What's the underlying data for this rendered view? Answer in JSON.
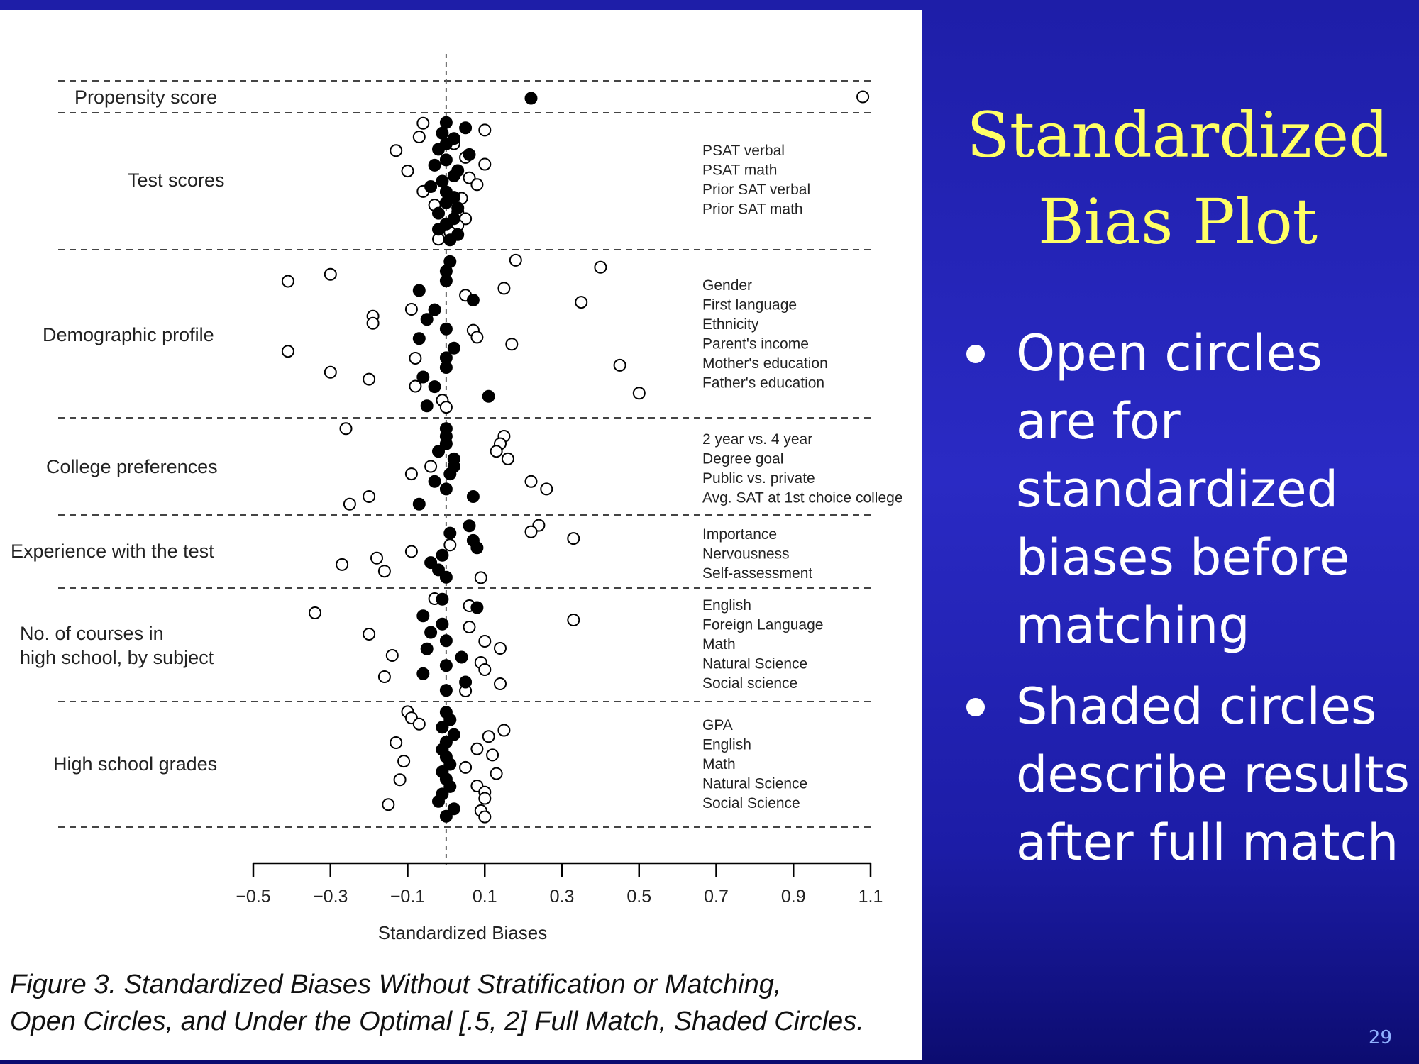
{
  "slide": {
    "title_lines": [
      "Standardized",
      "Bias Plot"
    ],
    "bullets": [
      "Open circles are for standardized biases before matching",
      "Shaded circles describe results after full match"
    ],
    "page_number": "29"
  },
  "figure": {
    "caption_lines": [
      "Figure 3. Standardized Biases Without Stratification or Matching,",
      "Open Circles, and Under the Optimal [.5, 2] Full Match, Shaded Circles."
    ]
  },
  "colors": {
    "title": "#ffff66",
    "background": "#2a2ac4",
    "text": "#ffffff",
    "figure_ink": "#000000"
  },
  "chart_data": {
    "type": "scatter",
    "title": "",
    "xlabel": "Standardized Biases",
    "ylabel": "",
    "xlim": [
      -0.5,
      1.1
    ],
    "xticks": [
      -0.5,
      -0.3,
      -0.1,
      0.1,
      0.3,
      0.5,
      0.7,
      0.9,
      1.1
    ],
    "xtick_labels": [
      "−0.5",
      "−0.3",
      "−0.1",
      "0.1",
      "0.3",
      "0.5",
      "0.7",
      "0.9",
      "1.1"
    ],
    "reference_line": 0,
    "groups": [
      {
        "label": "Propensity score",
        "covariates": [],
        "before": [
          1.08
        ],
        "after": [
          0.22
        ]
      },
      {
        "label": "Test scores",
        "covariates": [
          "PSAT verbal",
          "PSAT math",
          "Prior SAT verbal",
          "Prior SAT math"
        ],
        "before": [
          -0.06,
          0.1,
          -0.07,
          0.02,
          -0.13,
          0.05,
          0.1,
          -0.1,
          0.06,
          0.08,
          -0.06,
          0.04,
          -0.03,
          0.03,
          0.05,
          0.03,
          0.01,
          -0.02
        ],
        "after": [
          0.0,
          0.05,
          -0.01,
          0.02,
          0.0,
          -0.02,
          0.06,
          0.0,
          -0.03,
          0.03,
          0.02,
          -0.01,
          -0.04,
          0.0,
          0.02,
          0.0,
          0.03,
          -0.02,
          0.02,
          0.0,
          -0.02,
          0.03,
          0.01
        ]
      },
      {
        "label": "Demographic profile",
        "covariates": [
          "Gender",
          "First language",
          "Ethnicity",
          "Parent's income",
          "Mother's education",
          "Father's education"
        ],
        "before": [
          0.18,
          0.4,
          -0.3,
          -0.41,
          0.15,
          0.05,
          0.35,
          -0.09,
          -0.19,
          -0.19,
          0.07,
          0.08,
          0.17,
          -0.41,
          -0.08,
          0.45,
          -0.3,
          -0.2,
          -0.08,
          0.5,
          -0.01,
          0.0
        ],
        "after": [
          0.01,
          0.0,
          0.0,
          -0.07,
          0.07,
          -0.03,
          -0.05,
          0.0,
          -0.07,
          0.02,
          0.0,
          0.0,
          -0.06,
          -0.03,
          0.11,
          -0.05
        ]
      },
      {
        "label": "College preferences",
        "covariates": [
          "2 year vs. 4 year",
          "Degree goal",
          "Public vs. private",
          "Avg. SAT at 1st choice college"
        ],
        "before": [
          -0.26,
          0.15,
          0.14,
          0.13,
          0.16,
          -0.04,
          -0.09,
          0.22,
          0.26,
          -0.2,
          -0.25
        ],
        "after": [
          0.0,
          0.0,
          0.0,
          -0.02,
          0.02,
          0.02,
          0.01,
          -0.03,
          0.0,
          0.07,
          -0.07
        ]
      },
      {
        "label": "Experience with the test",
        "covariates": [
          "Importance",
          "Nervousness",
          "Self-assessment"
        ],
        "before": [
          0.24,
          0.22,
          0.33,
          0.01,
          -0.09,
          -0.18,
          -0.27,
          -0.16,
          0.09
        ],
        "after": [
          0.06,
          0.01,
          0.07,
          0.08,
          -0.01,
          -0.04,
          -0.02,
          0.0
        ]
      },
      {
        "label": "No. of courses in high school, by subject",
        "covariates": [
          "English",
          "Foreign Language",
          "Math",
          "Natural Science",
          "Social science"
        ],
        "before": [
          -0.03,
          0.06,
          -0.34,
          0.33,
          0.06,
          -0.2,
          0.1,
          0.14,
          -0.14,
          0.09,
          0.1,
          -0.16,
          0.14,
          0.05
        ],
        "after": [
          -0.01,
          0.08,
          -0.06,
          -0.01,
          -0.04,
          0.0,
          -0.05,
          0.04,
          0.0,
          -0.06,
          0.05,
          0.0
        ]
      },
      {
        "label": "High school grades",
        "covariates": [
          "GPA",
          "English",
          "Math",
          "Natural Science",
          "Social Science"
        ],
        "before": [
          -0.1,
          -0.09,
          -0.07,
          0.15,
          0.11,
          -0.13,
          0.08,
          0.12,
          -0.11,
          0.05,
          0.13,
          -0.12,
          0.08,
          0.1,
          0.1,
          -0.15,
          0.09,
          0.1
        ],
        "after": [
          0.0,
          0.01,
          -0.01,
          0.02,
          0.0,
          -0.01,
          0.0,
          0.01,
          -0.01,
          0.0,
          0.01,
          -0.01,
          -0.02,
          0.02,
          0.0
        ]
      }
    ]
  }
}
